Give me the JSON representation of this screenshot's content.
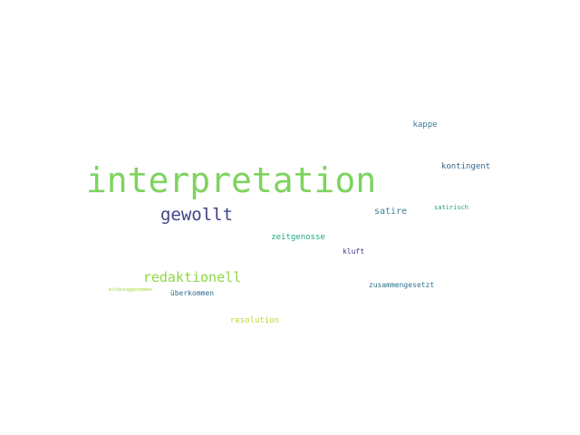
{
  "words": {
    "interpretation": "interpretation",
    "gewollt": "gewollt",
    "redaktionell": "redaktionell",
    "satire": "satire",
    "kappe": "kappe",
    "kontingent": "kontingent",
    "satirisch": "satirisch",
    "zeitgenosse": "zeitgenosse",
    "kluft": "kluft",
    "zusammengesetzt": "zusammengesetzt",
    "uberkommen": "überkommen",
    "mitbezug": "mitbezuggenommen",
    "resolution": "resolution"
  },
  "colors": {
    "background": "#ffffff",
    "green": "#7ed35f",
    "navy": "#414487",
    "lime": "#8fd744",
    "teal": "#20a486",
    "blue": "#3b7c9a"
  }
}
